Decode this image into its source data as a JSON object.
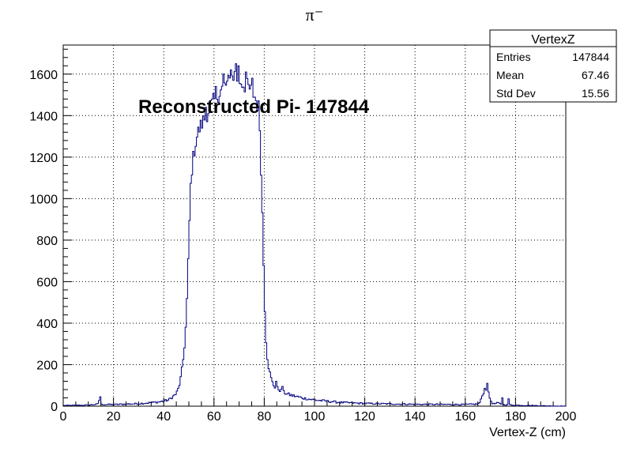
{
  "chart_data": {
    "type": "histogram",
    "title": "π⁻",
    "xlabel": "Vertex-Z (cm)",
    "ylabel": "",
    "xlim": [
      0,
      200
    ],
    "ylim": [
      0,
      1740
    ],
    "grid": true,
    "x_ticks": [
      0,
      20,
      40,
      60,
      80,
      100,
      120,
      140,
      160,
      180,
      200
    ],
    "y_ticks": [
      0,
      200,
      400,
      600,
      800,
      1000,
      1200,
      1400,
      1600
    ],
    "bin_width": 0.5,
    "line_color": "#000080",
    "annotation": "Reconstructed Pi- 147844",
    "stats_box": {
      "name": "VertexZ",
      "entries_label": "Entries",
      "entries_value": "147844",
      "mean_label": "Mean",
      "mean_value": "67.46",
      "stddev_label": "Std Dev",
      "stddev_value": "15.56"
    },
    "profile": [
      [
        0,
        3
      ],
      [
        10,
        5
      ],
      [
        14,
        10
      ],
      [
        14.5,
        45
      ],
      [
        15,
        8
      ],
      [
        20,
        8
      ],
      [
        30,
        12
      ],
      [
        38,
        20
      ],
      [
        42,
        30
      ],
      [
        45,
        60
      ],
      [
        46,
        90
      ],
      [
        47,
        150
      ],
      [
        48,
        250
      ],
      [
        49,
        420
      ],
      [
        49.5,
        600
      ],
      [
        50,
        780
      ],
      [
        50.5,
        1000
      ],
      [
        51,
        1120
      ],
      [
        52,
        1220
      ],
      [
        53,
        1290
      ],
      [
        54,
        1330
      ],
      [
        56,
        1380
      ],
      [
        58,
        1430
      ],
      [
        60,
        1470
      ],
      [
        62,
        1510
      ],
      [
        64,
        1540
      ],
      [
        66,
        1560
      ],
      [
        68,
        1600
      ],
      [
        70,
        1570
      ],
      [
        72,
        1550
      ],
      [
        74,
        1530
      ],
      [
        76,
        1500
      ],
      [
        78,
        1430
      ],
      [
        78.5,
        1250
      ],
      [
        79,
        1050
      ],
      [
        79.5,
        800
      ],
      [
        80,
        570
      ],
      [
        80.5,
        380
      ],
      [
        81,
        260
      ],
      [
        82,
        170
      ],
      [
        83,
        120
      ],
      [
        84,
        95
      ],
      [
        86,
        80
      ],
      [
        88,
        65
      ],
      [
        90,
        55
      ],
      [
        95,
        40
      ],
      [
        100,
        30
      ],
      [
        110,
        18
      ],
      [
        120,
        13
      ],
      [
        140,
        9
      ],
      [
        160,
        8
      ],
      [
        165,
        10
      ],
      [
        166,
        20
      ],
      [
        167,
        60
      ],
      [
        168,
        90
      ],
      [
        169,
        70
      ],
      [
        170,
        30
      ],
      [
        171,
        10
      ],
      [
        173,
        15
      ],
      [
        175,
        8
      ],
      [
        180,
        5
      ],
      [
        190,
        2
      ],
      [
        200,
        0
      ]
    ],
    "spikes": [
      [
        14.5,
        45
      ],
      [
        56.5,
        1440
      ],
      [
        60.5,
        1540
      ],
      [
        63.5,
        1600
      ],
      [
        66.5,
        1620
      ],
      [
        68.5,
        1650
      ],
      [
        69.5,
        1640
      ],
      [
        72.5,
        1610
      ],
      [
        75,
        1580
      ],
      [
        84.5,
        120
      ],
      [
        87,
        95
      ],
      [
        168.5,
        110
      ],
      [
        174.5,
        40
      ],
      [
        177,
        35
      ]
    ]
  }
}
